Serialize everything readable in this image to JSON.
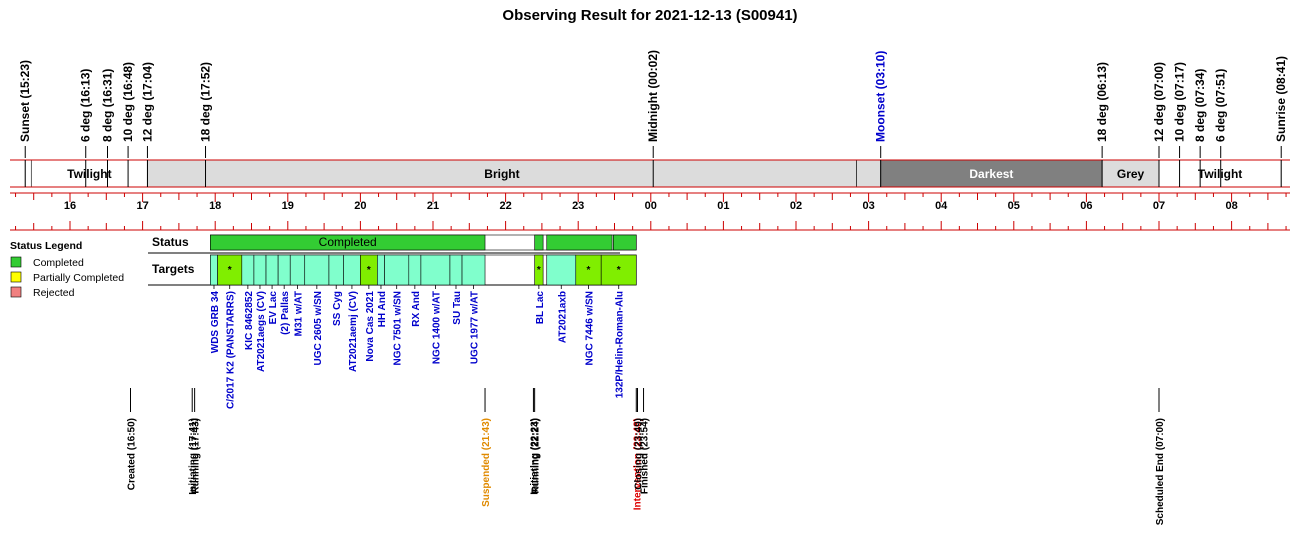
{
  "title": "Observing Result for 2021-12-13 (S00941)",
  "chart_data": {
    "type": "timeline",
    "axis": {
      "hour_labels": [
        "16",
        "17",
        "18",
        "19",
        "20",
        "21",
        "22",
        "23",
        "00",
        "01",
        "02",
        "03",
        "04",
        "05",
        "06",
        "07",
        "08"
      ],
      "hour_start": 16,
      "range_hours": [
        15.36,
        32.72
      ]
    },
    "top_events": [
      {
        "label": "Sunset (15:23)",
        "t": "15:23",
        "color": "#000000"
      },
      {
        "label": "6 deg (16:13)",
        "t": "16:13",
        "color": "#000000"
      },
      {
        "label": "8 deg (16:31)",
        "t": "16:31",
        "color": "#000000"
      },
      {
        "label": "10 deg (16:48)",
        "t": "16:48",
        "color": "#000000"
      },
      {
        "label": "12 deg (17:04)",
        "t": "17:04",
        "color": "#000000"
      },
      {
        "label": "18 deg (17:52)",
        "t": "17:52",
        "color": "#000000"
      },
      {
        "label": "Midnight (00:02)",
        "t": "00:02",
        "color": "#000000"
      },
      {
        "label": "Moonset (03:10)",
        "t": "03:10",
        "color": "#0000cc"
      },
      {
        "label": "18 deg (06:13)",
        "t": "06:13",
        "color": "#000000"
      },
      {
        "label": "12 deg (07:00)",
        "t": "07:00",
        "color": "#000000"
      },
      {
        "label": "10 deg (07:17)",
        "t": "07:17",
        "color": "#000000"
      },
      {
        "label": "8 deg (07:34)",
        "t": "07:34",
        "color": "#000000"
      },
      {
        "label": "6 deg (07:51)",
        "t": "07:51",
        "color": "#000000"
      },
      {
        "label": "Sunrise (08:41)",
        "t": "08:41",
        "color": "#000000"
      }
    ],
    "sky_segments": [
      {
        "label": "",
        "start": "15:23",
        "end": "15:28",
        "color": "#ffffff",
        "text_color": "#000000"
      },
      {
        "label": "Twilight",
        "start": "15:28",
        "end": "17:04",
        "color": "#ffffff",
        "text_color": "#000000"
      },
      {
        "label": "Bright",
        "start": "17:04",
        "end": "02:50",
        "color": "#dcdcdc",
        "text_color": "#000000"
      },
      {
        "label": "",
        "start": "02:50",
        "end": "03:10",
        "color": "#dcdcdc",
        "text_color": "#000000"
      },
      {
        "label": "Darkest",
        "start": "03:10",
        "end": "06:13",
        "color": "#808080",
        "text_color": "#ffffff"
      },
      {
        "label": "Grey",
        "start": "06:13",
        "end": "07:00",
        "color": "#dcdcdc",
        "text_color": "#000000"
      },
      {
        "label": "Twilight",
        "start": "07:00",
        "end": "08:41",
        "color": "#ffffff",
        "text_color": "#000000"
      }
    ],
    "status_row_label": "Status",
    "targets_row_label": "Targets",
    "status_segments": [
      {
        "label": "Completed",
        "start": "17:56",
        "end": "21:43",
        "status": "Completed"
      },
      {
        "label": "",
        "start": "22:24",
        "end": "22:31",
        "status": "Completed"
      },
      {
        "label": "",
        "start": "22:34",
        "end": "23:28",
        "status": "Completed"
      },
      {
        "label": "",
        "start": "23:29",
        "end": "23:48",
        "status": "Completed"
      }
    ],
    "targets": [
      {
        "name": "WDS GRB 34",
        "start": "17:56",
        "end": "18:02",
        "marker": ""
      },
      {
        "name": "C/2017 K2 (PANSTARRS)",
        "start": "18:02",
        "end": "18:22",
        "marker": "*"
      },
      {
        "name": "KIC 8462852",
        "start": "18:22",
        "end": "18:32",
        "marker": ""
      },
      {
        "name": "AT2021aegs (CV)",
        "start": "18:32",
        "end": "18:42",
        "marker": ""
      },
      {
        "name": "EV Lac",
        "start": "18:42",
        "end": "18:52",
        "marker": ""
      },
      {
        "name": "(2) Pallas",
        "start": "18:52",
        "end": "19:02",
        "marker": ""
      },
      {
        "name": "M31 w/AT",
        "start": "19:02",
        "end": "19:14",
        "marker": ""
      },
      {
        "name": "UGC 2605 w/SN",
        "start": "19:14",
        "end": "19:34",
        "marker": ""
      },
      {
        "name": "SS Cyg",
        "start": "19:34",
        "end": "19:46",
        "marker": ""
      },
      {
        "name": "AT2021aemj (CV)",
        "start": "19:46",
        "end": "20:00",
        "marker": ""
      },
      {
        "name": "Nova Cas 2021",
        "start": "20:00",
        "end": "20:14",
        "marker": "*"
      },
      {
        "name": "HH And",
        "start": "20:14",
        "end": "20:20",
        "marker": ""
      },
      {
        "name": "NGC 7501 w/SN",
        "start": "20:20",
        "end": "20:40",
        "marker": ""
      },
      {
        "name": "RX And",
        "start": "20:40",
        "end": "20:50",
        "marker": ""
      },
      {
        "name": "NGC 1400 w/AT",
        "start": "20:50",
        "end": "21:14",
        "marker": ""
      },
      {
        "name": "SU Tau",
        "start": "21:14",
        "end": "21:24",
        "marker": ""
      },
      {
        "name": "UGC 1977 w/AT",
        "start": "21:24",
        "end": "21:43",
        "marker": ""
      },
      {
        "name": "BL Lac",
        "start": "22:24",
        "end": "22:31",
        "marker": "*"
      },
      {
        "name": "AT2021axb",
        "start": "22:34",
        "end": "22:58",
        "marker": ""
      },
      {
        "name": "NGC 7446 w/SN",
        "start": "22:58",
        "end": "23:19",
        "marker": "*"
      },
      {
        "name": "132P/Helin-Roman-Alu",
        "start": "23:19",
        "end": "23:48",
        "marker": "*"
      }
    ],
    "bottom_events": [
      {
        "label": "Created (16:50)",
        "t": "16:50",
        "color": "#000000"
      },
      {
        "label": "Initiating (17:41)",
        "t": "17:41",
        "color": "#000000"
      },
      {
        "label": "Running (17:43)",
        "t": "17:43",
        "color": "#000000"
      },
      {
        "label": "Suspended (21:43)",
        "t": "21:43",
        "color": "#e08a00"
      },
      {
        "label": "Initiating (22:23)",
        "t": "22:23",
        "color": "#000000"
      },
      {
        "label": "Running (22:24)",
        "t": "22:24",
        "color": "#000000"
      },
      {
        "label": "Intervention (23:48)",
        "t": "23:48",
        "color": "#dd0000"
      },
      {
        "label": "Closing (23:49)",
        "t": "23:49",
        "color": "#000000"
      },
      {
        "label": "Finished (23:54)",
        "t": "23:54",
        "color": "#000000"
      },
      {
        "label": "Scheduled End (07:00)",
        "t": "07:00",
        "color": "#000000"
      }
    ],
    "legend": {
      "title": "Status Legend",
      "items": [
        {
          "label": "Completed",
          "color": "#33cc33"
        },
        {
          "label": "Partially Completed",
          "color": "#ffff00"
        },
        {
          "label": "Rejected",
          "color": "#f08080"
        }
      ]
    },
    "colors": {
      "axis_red": "#cc0000",
      "completed": "#33cc33",
      "target_fill": "#80ffcc",
      "target_marked_fill": "#80ee00",
      "target_label": "#0000cc"
    }
  }
}
